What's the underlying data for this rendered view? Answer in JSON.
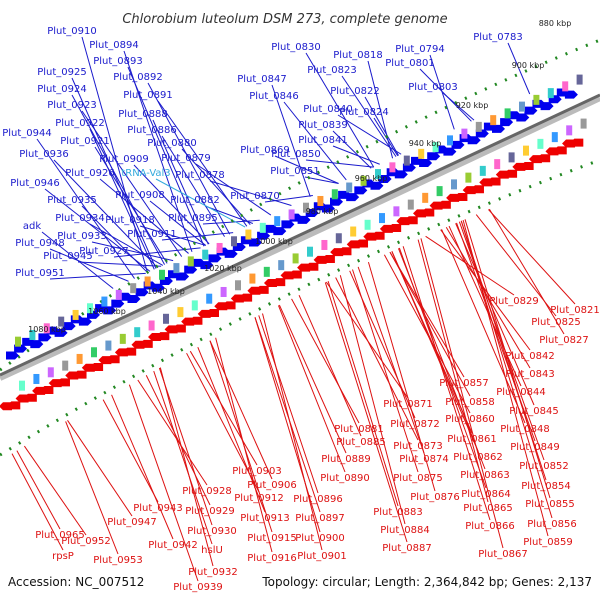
{
  "title": "Chlorobium luteolum DSM 273, complete genome",
  "footer": {
    "accession": "Accession: NC_007512",
    "summary": "Topology: circular; Length: 2,364,842 bp; Genes: 2,137"
  },
  "colors": {
    "forward_label": "#1a1acc",
    "reverse_label": "#dd1111",
    "trna_label": "#33aadd",
    "forward_gene": "#0000ee",
    "reverse_gene": "#ee0000",
    "scale_dots": "#228822",
    "backbone": "#777777"
  },
  "scale_ticks": [
    "880 kbp",
    "900 kbp",
    "920 kbp",
    "940 kbp",
    "960 kbp",
    "980 kbp",
    "1000 kbp",
    "1020 kbp",
    "1040 kbp",
    "1060 kbp",
    "1080 kbp"
  ],
  "forward_labels": [
    "Plut_0910",
    "Plut_0894",
    "Plut_0893",
    "Plut_0892",
    "Plut_0891",
    "Plut_0888",
    "Plut_0886",
    "Plut_0880",
    "Plut_0879",
    "Plut_0878",
    "Plut_0882",
    "Plut_0895",
    "Plut_0925",
    "Plut_0924",
    "Plut_0923",
    "Plut_0922",
    "Plut_0921",
    "Plut_0909",
    "Plut_0926",
    "tRNA-Val3",
    "Plut_0908",
    "Plut_0918",
    "Plut_0911",
    "Plut_0944",
    "Plut_0936",
    "Plut_0935",
    "Plut_0934",
    "Plut_0933",
    "Plut_0927",
    "Plut_0946",
    "adk",
    "Plut_0948",
    "Plut_0945",
    "Plut_0951",
    "Plut_0830",
    "Plut_0818",
    "Plut_0794",
    "Plut_0783",
    "Plut_0823",
    "Plut_0801",
    "Plut_0847",
    "Plut_0822",
    "Plut_0803",
    "Plut_0846",
    "Plut_0840",
    "Plut_0824",
    "Plut_0839",
    "Plut_0841",
    "Plut_0869",
    "Plut_0850",
    "Plut_0851",
    "Plut_0870"
  ],
  "reverse_labels": [
    "Plut_0829",
    "Plut_0821",
    "Plut_0825",
    "Plut_0827",
    "Plut_0842",
    "Plut_0843",
    "Plut_0857",
    "Plut_0844",
    "Plut_0871",
    "Plut_0858",
    "Plut_0845",
    "Plut_0872",
    "Plut_0860",
    "Plut_0848",
    "Plut_0881",
    "Plut_0885",
    "Plut_0873",
    "Plut_0861",
    "Plut_0849",
    "Plut_0874",
    "Plut_0862",
    "Plut_0852",
    "Plut_0889",
    "Plut_0875",
    "Plut_0863",
    "Plut_0854",
    "Plut_0890",
    "Plut_0876",
    "Plut_0864",
    "Plut_0855",
    "Plut_0883",
    "Plut_0865",
    "Plut_0856",
    "Plut_0903",
    "Plut_0906",
    "Plut_0896",
    "Plut_0912",
    "Plut_0913",
    "Plut_0897",
    "Plut_0884",
    "Plut_0866",
    "Plut_0859",
    "Plut_0900",
    "Plut_0901",
    "Plut_0887",
    "Plut_0867",
    "Plut_0915",
    "Plut_0916",
    "Plut_0928",
    "Plut_0929",
    "Plut_0943",
    "Plut_0930",
    "Plut_0947",
    "Plut_0942",
    "hslU",
    "Plut_0965",
    "Plut_0952",
    "rpsP",
    "Plut_0953",
    "Plut_0932",
    "Plut_0939"
  ]
}
